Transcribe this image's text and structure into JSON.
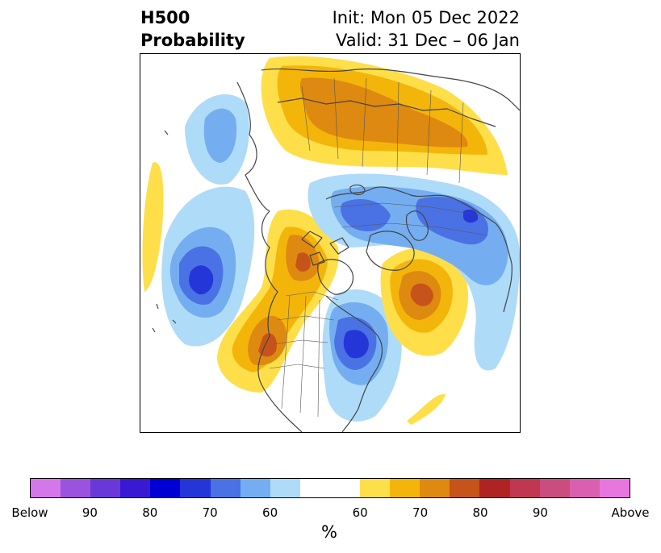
{
  "title": {
    "left_line1": "H500",
    "left_line2": "Probability",
    "right_line1": "Init: Mon 05 Dec 2022",
    "right_line2": "Valid: 31 Dec – 06 Jan"
  },
  "colorbar": {
    "colors": [
      "#d377e9",
      "#9a52df",
      "#6a38d8",
      "#3a19d4",
      "#0000d6",
      "#2436d8",
      "#4b72e4",
      "#74aef1",
      "#aedbf8",
      "#ffffff",
      "#ffffff",
      "#fedf4a",
      "#f4b50a",
      "#de8a10",
      "#c6541a",
      "#b02323",
      "#c13650",
      "#cb4c7e",
      "#da5fb1",
      "#e777df"
    ],
    "tick_labels": [
      "Below",
      "90",
      "80",
      "70",
      "60",
      "60",
      "70",
      "80",
      "90",
      "Above"
    ],
    "unit_label": "%"
  },
  "map": {
    "region": "North America / Arctic polar projection",
    "below_colors": [
      "#aedbf8",
      "#74aef1",
      "#4b72e4",
      "#2436d8"
    ],
    "above_colors": [
      "#fedf4a",
      "#f4b50a",
      "#de8a10",
      "#c6541a"
    ],
    "coastline_color": "#444444"
  }
}
